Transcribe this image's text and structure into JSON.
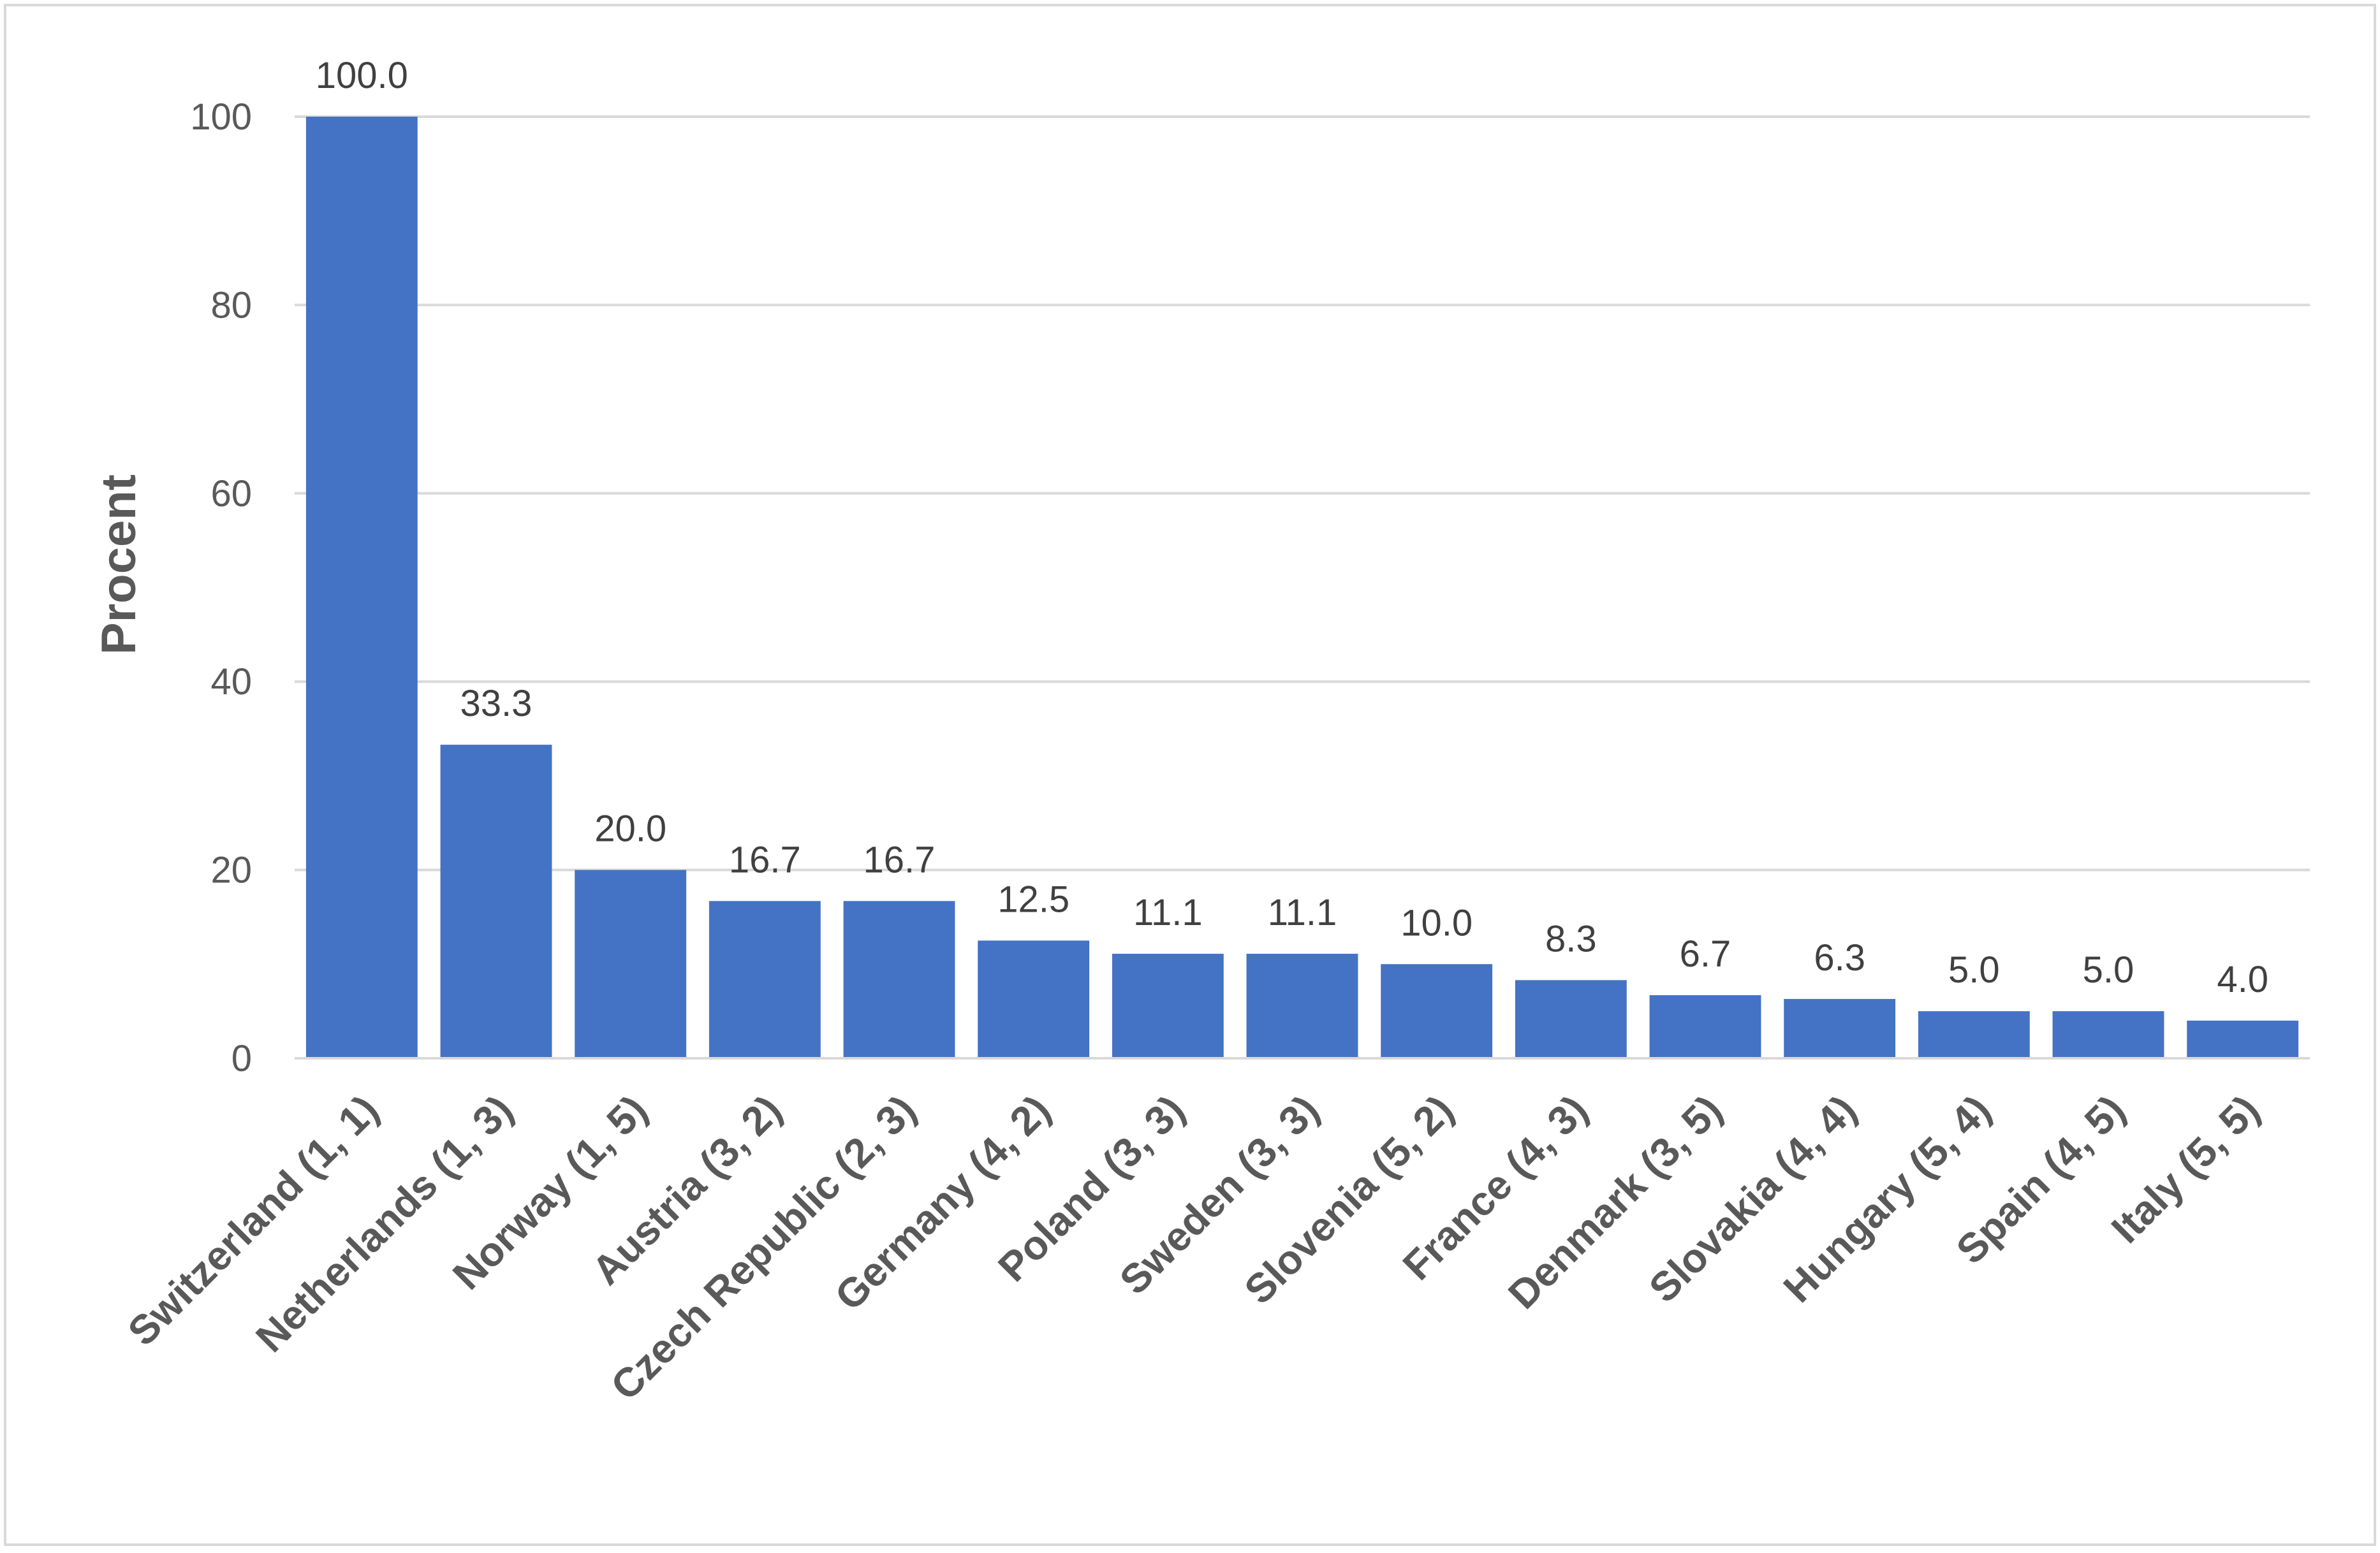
{
  "chart_data": {
    "type": "bar",
    "title": "",
    "xlabel": "",
    "ylabel": "Procent",
    "ylim": [
      0,
      100
    ],
    "yticks": [
      0,
      20,
      40,
      60,
      80,
      100
    ],
    "grid": true,
    "legend": "none",
    "bar_color": "#4472C4",
    "categories": [
      "Switzerland (1, 1)",
      "Netherlands (1, 3)",
      "Norway (1, 5)",
      "Austria (3, 2)",
      "Czech Republic (2, 3)",
      "Germany (4, 2)",
      "Poland (3, 3)",
      "Sweden (3, 3)",
      "Slovenia (5, 2)",
      "France (4, 3)",
      "Denmark (3, 5)",
      "Slovakia (4, 4)",
      "Hungary (5, 4)",
      "Spain (4, 5)",
      "Italy (5, 5)"
    ],
    "values": [
      100.0,
      33.3,
      20.0,
      16.7,
      16.7,
      12.5,
      11.1,
      11.1,
      10.0,
      8.3,
      6.7,
      6.3,
      5.0,
      5.0,
      4.0
    ],
    "data_labels": [
      "100.0",
      "33.3",
      "20.0",
      "16.7",
      "16.7",
      "12.5",
      "11.1",
      "11.1",
      "10.0",
      "8.3",
      "6.7",
      "6.3",
      "5.0",
      "5.0",
      "4.0"
    ]
  }
}
